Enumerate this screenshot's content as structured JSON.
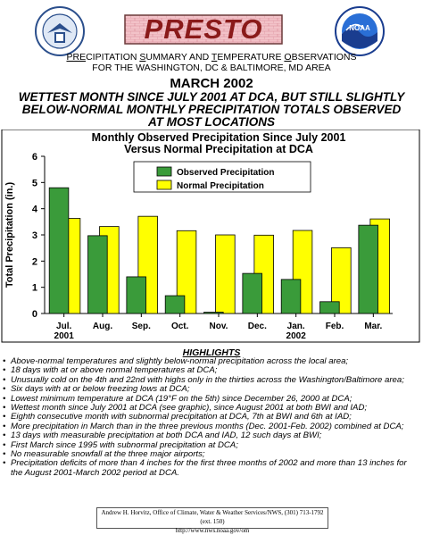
{
  "header": {
    "logo_text": "PRESTO",
    "left_seal_icon": "department-of-commerce-seal-icon",
    "right_seal_icon": "noaa-logo-icon",
    "noaa_text": "NOAA",
    "title_line1_parts": [
      "PRE",
      "CIPITATION ",
      "S",
      "UMMARY AND ",
      "T",
      "EMPERATURE ",
      "O",
      "BSERVATIONS"
    ],
    "title_line2": "FOR THE WASHINGTON, DC & BALTIMORE, MD AREA",
    "month_title": "MARCH 2002",
    "headline_lines": [
      "WETTEST MONTH SINCE JULY 2001 AT DCA, BUT STILL SLIGHTLY",
      "BELOW-NORMAL MONTHLY PRECIPITATION TOTALS OBSERVED",
      "AT MOST LOCATIONS"
    ]
  },
  "chart_data": {
    "type": "bar",
    "title": "Monthly Observed Precipitation Since July 2001",
    "subtitle": "Versus Normal Precipitation at DCA",
    "ylabel": "Total Precipitation (in.)",
    "xlabel": "",
    "ylim": [
      0,
      6
    ],
    "yticks": [
      0,
      1,
      2,
      3,
      4,
      5,
      6
    ],
    "grid": false,
    "legend_position": "top-left",
    "categories": [
      "Jul.",
      "Aug.",
      "Sep.",
      "Oct.",
      "Nov.",
      "Dec.",
      "Jan.",
      "Feb.",
      "Mar."
    ],
    "category_sublabels": [
      "2001",
      "",
      "",
      "",
      "",
      "",
      "2002",
      "",
      ""
    ],
    "series": [
      {
        "name": "Observed Precipitation",
        "color": "#3a9b3a",
        "values": [
          4.8,
          2.97,
          1.4,
          0.68,
          0.05,
          1.53,
          1.3,
          0.45,
          3.37
        ]
      },
      {
        "name": "Normal Precipitation",
        "color": "#ffff00",
        "values": [
          3.63,
          3.32,
          3.71,
          3.16,
          3.0,
          2.99,
          3.17,
          2.51,
          3.61
        ]
      }
    ]
  },
  "highlights": {
    "title": "HIGHLIGHTS",
    "items": [
      "Above-normal temperatures and slightly below-normal precipitation across the local area;",
      "18 days with at or above normal temperatures at DCA;",
      "Unusually cold on the 4th and 22nd with highs only in the thirties across the Washington/Baltimore area;",
      "Six days with at or below freezing lows at DCA;",
      "Lowest minimum temperature at DCA (19°F on the 5th) since December 26, 2000 at DCA;",
      "Wettest month since July 2001 at DCA (see graphic), since August 2001 at both BWI and IAD;",
      "Eighth consecutive month with subnormal precipitation at DCA, 7th at BWI and 6th at IAD;",
      "More precipitation in March than in the three previous months (Dec. 2001-Feb. 2002) combined at DCA;",
      "13 days with measurable precipitation at both DCA and IAD, 12 such days at BWI;",
      "First March since 1995 with subnormal precipitation at DCA;",
      "No measurable snowfall at the three major airports;",
      "Precipitation deficits of more than 4 inches for the first three months of 2002 and more than 13 inches for the August 2001-March 2002 period at DCA."
    ]
  },
  "footer": {
    "line1": "Andrew H. Horvitz, Office of Climate, Water & Weather Services/NWS, (301) 713-1792 (ext. 150)",
    "line2": "http://www.nws.noaa.gov/om"
  }
}
